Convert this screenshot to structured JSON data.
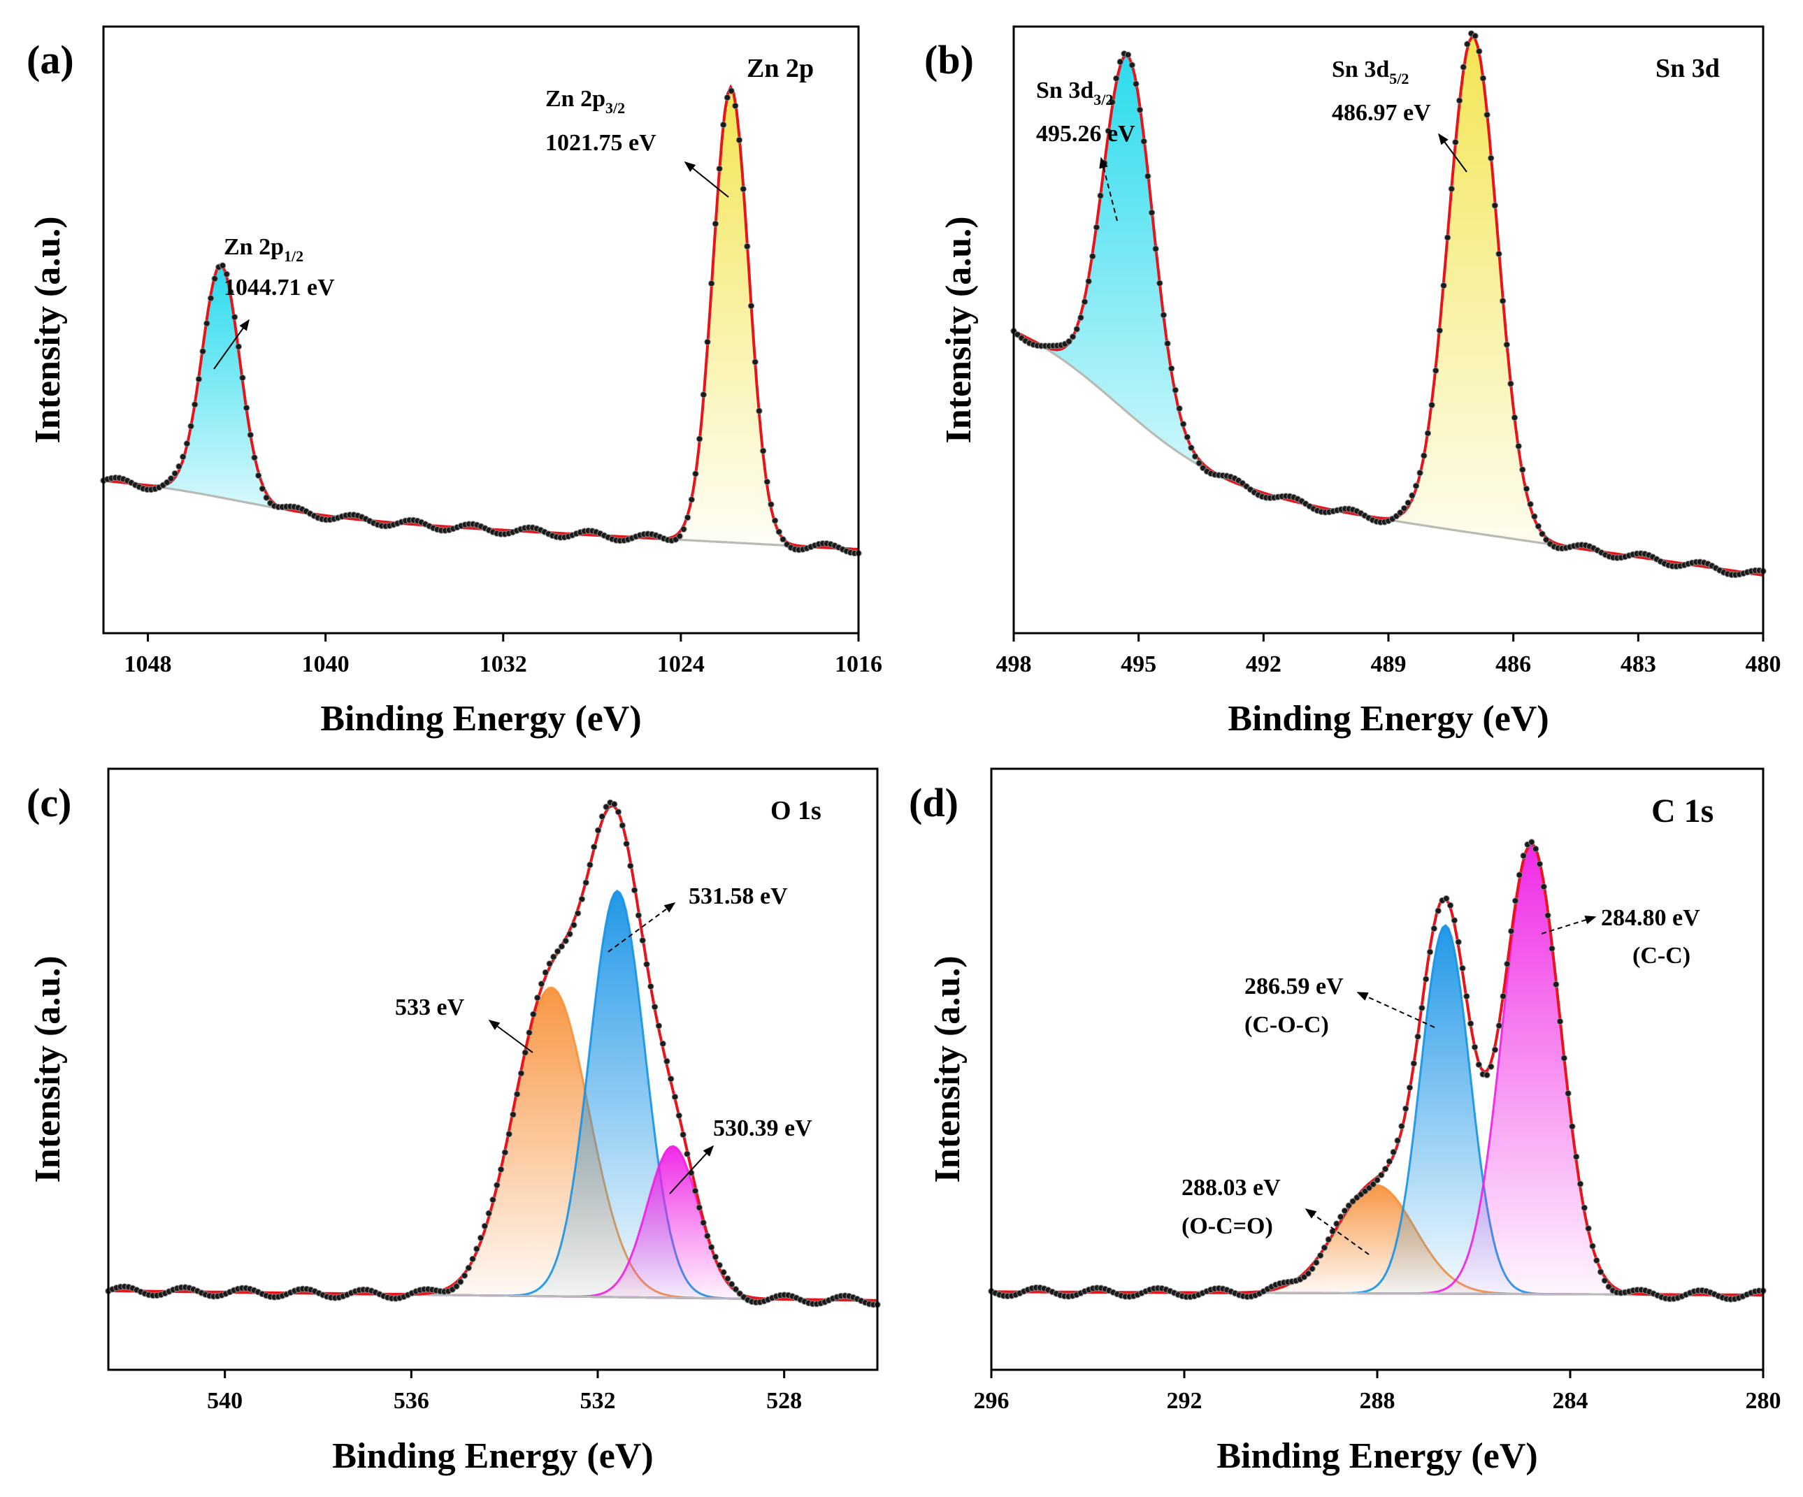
{
  "chart_data": [
    {
      "type": "line",
      "panel": "(a)",
      "region": "Zn 2p",
      "xlabel": "Binding Energy (eV)",
      "ylabel": "Intensity (a.u.)",
      "xlim": [
        1050,
        1016
      ],
      "xticks": [
        "1048",
        "1040",
        "1032",
        "1024",
        "1016"
      ],
      "xtick_values": [
        1048,
        1040,
        1032,
        1024,
        1016
      ],
      "ylim": [
        0,
        1
      ],
      "background": {
        "left": 0.23,
        "right": 0.1,
        "step_center": 1044,
        "step_width": 2.5,
        "step_height": 0.06
      },
      "peaks": [
        {
          "label_main": "Zn 2p",
          "label_sub": "1/2",
          "energy_label": "1044.71 eV",
          "center": 1044.71,
          "height": 0.45,
          "fwhm": 2.0,
          "color": "#1ed9ec"
        },
        {
          "label_main": "Zn 2p",
          "label_sub": "3/2",
          "energy_label": "1021.75 eV",
          "center": 1021.75,
          "height": 0.88,
          "fwhm": 1.9,
          "color": "#f2e44a"
        }
      ]
    },
    {
      "type": "line",
      "panel": "(b)",
      "region": "Sn 3d",
      "xlabel": "Binding Energy (eV)",
      "ylabel": "Intensity (a.u.)",
      "xlim": [
        498,
        480
      ],
      "xticks": [
        "498",
        "495",
        "492",
        "489",
        "486",
        "483",
        "480"
      ],
      "xtick_values": [
        498,
        495,
        492,
        489,
        486,
        483,
        480
      ],
      "ylim": [
        0,
        1
      ],
      "background": {
        "left": 0.4,
        "right": 0.05,
        "step_center": 495.5,
        "step_width": 1.3,
        "step_height": 0.3
      },
      "peaks": [
        {
          "label_main": "Sn 3d",
          "label_sub": "3/2",
          "energy_label": "495.26 eV",
          "center": 495.26,
          "height": 0.69,
          "fwhm": 1.4,
          "color": "#1ed9ec"
        },
        {
          "label_main": "Sn 3d",
          "label_sub": "5/2",
          "energy_label": "486.97 eV",
          "center": 486.97,
          "height": 0.96,
          "fwhm": 1.4,
          "color": "#f2e44a"
        }
      ]
    },
    {
      "type": "line",
      "panel": "(c)",
      "region": "O 1s",
      "xlabel": "Binding Energy (eV)",
      "ylabel": "Intensity (a.u.)",
      "xlim": [
        542.5,
        526
      ],
      "xticks": [
        "540",
        "536",
        "532",
        "528"
      ],
      "xtick_values": [
        540,
        536,
        532,
        528
      ],
      "ylim": [
        0,
        1
      ],
      "background": {
        "left": 0.1,
        "right": 0.07,
        "step_center": 532,
        "step_width": 2,
        "step_height": 0.0
      },
      "peaks": [
        {
          "energy_label": "533 eV",
          "center": 533.0,
          "height": 0.57,
          "fwhm": 1.9,
          "color": "#f7913a"
        },
        {
          "energy_label": "531.58 eV",
          "center": 531.58,
          "height": 0.75,
          "fwhm": 1.4,
          "color": "#1592e6"
        },
        {
          "energy_label": "530.39 eV",
          "center": 530.39,
          "height": 0.28,
          "fwhm": 1.3,
          "color": "#ef1fe4"
        }
      ]
    },
    {
      "type": "line",
      "panel": "(d)",
      "region": "C 1s",
      "xlabel": "Binding Energy (eV)",
      "ylabel": "Intensity (a.u.)",
      "xlim": [
        296,
        280
      ],
      "xticks": [
        "296",
        "292",
        "288",
        "284",
        "280"
      ],
      "xtick_values": [
        296,
        292,
        288,
        284,
        280
      ],
      "ylim": [
        0,
        1
      ],
      "background": {
        "left": 0.09,
        "right": 0.08,
        "step_center": 288,
        "step_width": 2,
        "step_height": 0.0
      },
      "peaks": [
        {
          "energy_label": "288.03 eV",
          "bond_label": "(O-C=O)",
          "center": 288.03,
          "height": 0.2,
          "fwhm": 1.9,
          "color": "#f7913a"
        },
        {
          "energy_label": "286.59 eV",
          "bond_label": "(C-O-C)",
          "center": 286.59,
          "height": 0.68,
          "fwhm": 1.2,
          "color": "#1592e6"
        },
        {
          "energy_label": "284.80 eV",
          "bond_label": "(C-C)",
          "center": 284.8,
          "height": 0.83,
          "fwhm": 1.4,
          "color": "#ef1fe4"
        }
      ]
    }
  ]
}
